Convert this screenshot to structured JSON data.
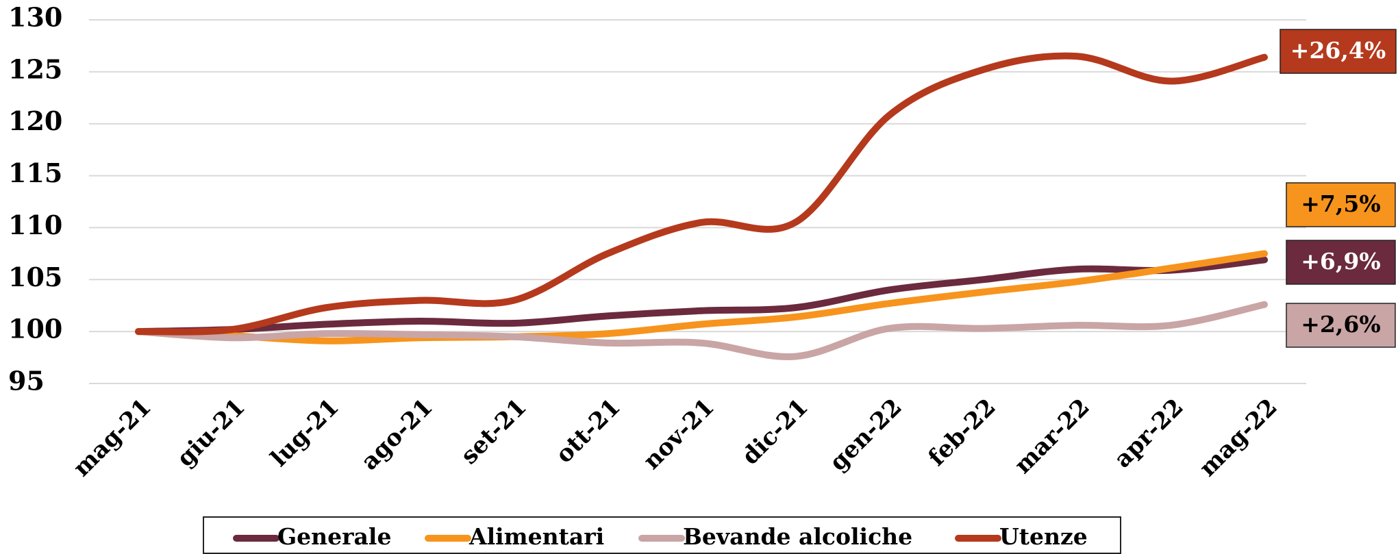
{
  "chart_data": {
    "type": "line",
    "categories": [
      "mag-21",
      "giu-21",
      "lug-21",
      "ago-21",
      "set-21",
      "ott-21",
      "nov-21",
      "dic-21",
      "gen-22",
      "feb-22",
      "mar-22",
      "apr-22",
      "mag-22"
    ],
    "series": [
      {
        "name": "Generale",
        "color": "#6b2a3e",
        "values": [
          100,
          100.2,
          100.7,
          101,
          100.8,
          101.5,
          102,
          102.3,
          104,
          105,
          106,
          105.9,
          106.9
        ],
        "end_label": "+6,9%"
      },
      {
        "name": "Alimentari",
        "color": "#f7941d",
        "values": [
          100,
          99.6,
          99.1,
          99.4,
          99.5,
          99.8,
          100.7,
          101.4,
          102.7,
          103.8,
          104.8,
          106.1,
          107.5
        ],
        "end_label": "+7,5%"
      },
      {
        "name": "Bevande alcoliche",
        "color": "#c9a5a5",
        "values": [
          100,
          99.4,
          99.8,
          99.7,
          99.5,
          98.9,
          98.9,
          97.6,
          100.3,
          100.3,
          100.6,
          100.6,
          102.6
        ],
        "end_label": "+2,6%"
      },
      {
        "name": "Utenze",
        "color": "#b5391c",
        "values": [
          100,
          100.2,
          102.3,
          103,
          103,
          107.5,
          110.5,
          110.5,
          120.8,
          125.2,
          126.5,
          124.1,
          126.4
        ],
        "end_label": "+26,4%"
      }
    ],
    "ylim": [
      95,
      130
    ],
    "yticks": [
      95,
      100,
      105,
      110,
      115,
      120,
      125,
      130
    ],
    "grid": true,
    "legend": "bottom"
  }
}
